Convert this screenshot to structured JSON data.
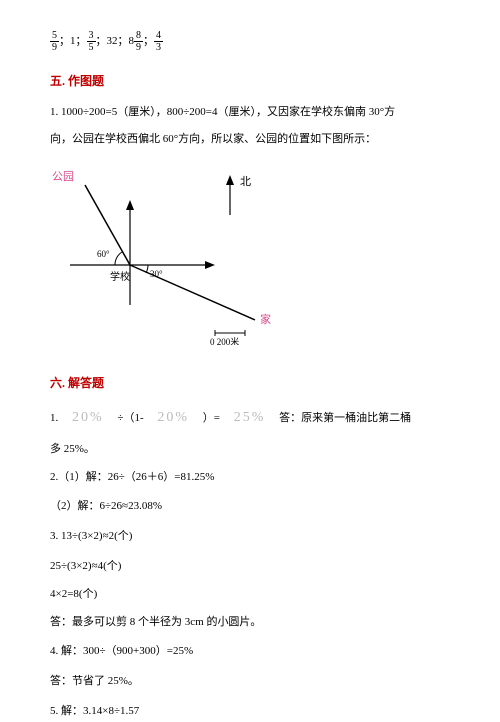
{
  "top_fractions": {
    "items": [
      {
        "type": "frac",
        "num": "5",
        "den": "9"
      },
      {
        "type": "text",
        "val": "；1；"
      },
      {
        "type": "frac",
        "num": "3",
        "den": "5"
      },
      {
        "type": "text",
        "val": "；32；8"
      },
      {
        "type": "frac",
        "num": "8",
        "den": "9"
      },
      {
        "type": "text",
        "val": "；"
      },
      {
        "type": "frac",
        "num": "4",
        "den": "3"
      }
    ]
  },
  "section5": {
    "header": "五. 作图题",
    "line1": "1. 1000÷200=5（厘米），800÷200=4（厘米），又因家在学校东偏南 30°方",
    "line2": "向，公园在学校西偏北 60°方向，所以家、公园的位置如下图所示："
  },
  "diagram": {
    "park_label": "公园",
    "park_color": "#d94a8c",
    "north_label": "北",
    "angle60": "60°",
    "angle30": "30°",
    "school_label": "学校",
    "home_label": "家",
    "home_color": "#d94a8c",
    "scale_label": "0   200米",
    "line_color": "#000000"
  },
  "section6": {
    "header": "六. 解答题",
    "q1_prefix": "1.　",
    "q1_pct1": "20%",
    "q1_mid1": "　÷（1-　",
    "q1_pct2": "20%",
    "q1_mid2": "　）=　",
    "q1_pct3": "25%",
    "q1_tail": "　答：原来第一桶油比第二桶",
    "q1_line2": "多 25%。",
    "q2a": "2.（1）解：26÷（26＋6）=81.25%",
    "q2b": "（2）解：6÷26≈23.08%",
    "q3a": "3. 13÷(3×2)≈2(个)",
    "q3b": "25÷(3×2)≈4(个)",
    "q3c": "4×2=8(个)",
    "q3d": "答：最多可以剪 8 个半径为 3cm 的小圆片。",
    "q4a": "4. 解：300÷（900+300）=25%",
    "q4b": "答：节省了 25%。",
    "q5": "5. 解：3.14×8÷1.57"
  },
  "colors": {
    "header_red": "#c00000",
    "faded_gray": "#bbbbbb",
    "text": "#000000",
    "bg": "#ffffff"
  }
}
